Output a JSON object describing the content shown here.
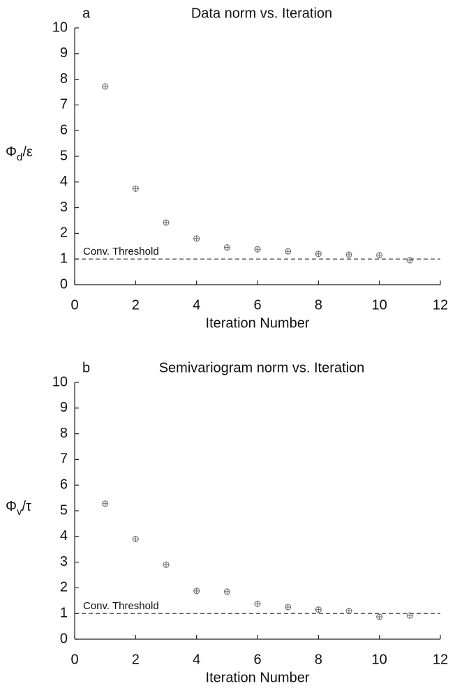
{
  "chart_data": [
    {
      "type": "scatter",
      "panel": "a",
      "title": "Data norm vs. Iteration",
      "xlabel": "Iteration Number",
      "ylabel": {
        "symbol": "Φ",
        "sub": "d",
        "rest": "/ε"
      },
      "x": [
        1,
        2,
        3,
        4,
        5,
        6,
        7,
        8,
        9,
        10,
        11
      ],
      "values": [
        7.72,
        3.74,
        2.42,
        1.8,
        1.45,
        1.38,
        1.3,
        1.2,
        1.17,
        1.15,
        0.95
      ],
      "color": "#666666",
      "xlim": [
        0,
        12
      ],
      "xticks": [
        0,
        2,
        4,
        6,
        8,
        10,
        12
      ],
      "ylim": [
        0,
        10
      ],
      "yticks": [
        0,
        1,
        2,
        3,
        4,
        5,
        6,
        7,
        8,
        9,
        10
      ],
      "threshold": 1,
      "threshold_label": "Conv. Threshold"
    },
    {
      "type": "scatter",
      "panel": "b",
      "title": "Semivariogram norm vs. Iteration",
      "xlabel": "Iteration Number",
      "ylabel": {
        "symbol": "Φ",
        "sub": "v",
        "rest": "/τ"
      },
      "x": [
        1,
        2,
        3,
        4,
        5,
        6,
        7,
        8,
        9,
        10,
        11
      ],
      "values": [
        5.28,
        3.9,
        2.9,
        1.88,
        1.85,
        1.38,
        1.25,
        1.15,
        1.1,
        0.87,
        0.92
      ],
      "color": "#666666",
      "xlim": [
        0,
        12
      ],
      "xticks": [
        0,
        2,
        4,
        6,
        8,
        10,
        12
      ],
      "ylim": [
        0,
        10
      ],
      "yticks": [
        0,
        1,
        2,
        3,
        4,
        5,
        6,
        7,
        8,
        9,
        10
      ],
      "threshold": 1,
      "threshold_label": "Conv. Threshold"
    }
  ]
}
